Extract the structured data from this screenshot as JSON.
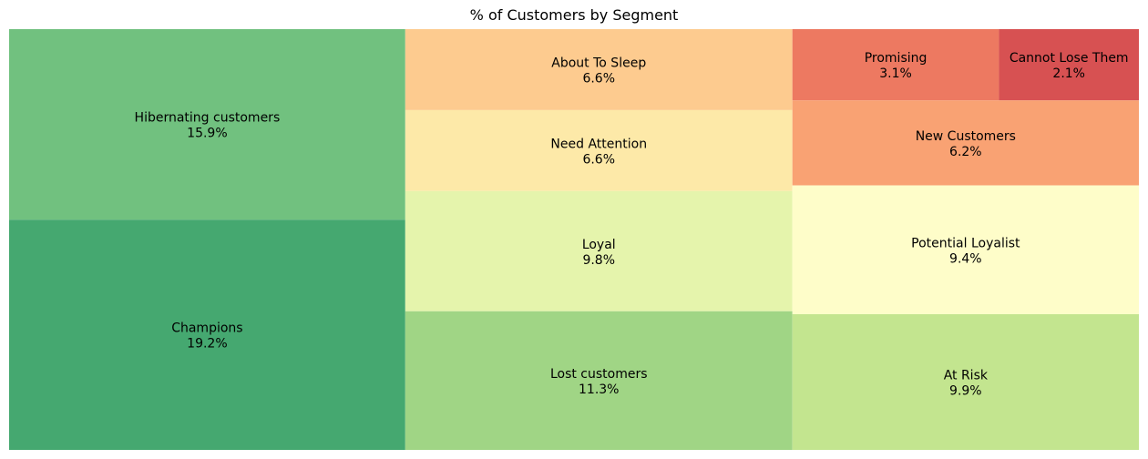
{
  "chart_data": {
    "type": "treemap",
    "title": "% of Customers by Segment",
    "value_format": "{value}%",
    "segments": [
      {
        "name": "Champions",
        "value": 19.2,
        "label": "19.2%",
        "color": "#45a870"
      },
      {
        "name": "Hibernating customers",
        "value": 15.9,
        "label": "15.9%",
        "color": "#71c17f"
      },
      {
        "name": "Lost customers",
        "value": 11.3,
        "label": "11.3%",
        "color": "#a0d585"
      },
      {
        "name": "Loyal",
        "value": 9.8,
        "label": "9.8%",
        "color": "#e5f4ac"
      },
      {
        "name": "About To Sleep",
        "value": 6.6,
        "label": "6.6%",
        "color": "#fdcb8f"
      },
      {
        "name": "Need Attention",
        "value": 6.6,
        "label": "6.6%",
        "color": "#fde9a8"
      },
      {
        "name": "At Risk",
        "value": 9.9,
        "label": "9.9%",
        "color": "#c3e58f"
      },
      {
        "name": "Potential Loyalist",
        "value": 9.4,
        "label": "9.4%",
        "color": "#fefdc9"
      },
      {
        "name": "New Customers",
        "value": 6.2,
        "label": "6.2%",
        "color": "#f9a273"
      },
      {
        "name": "Promising",
        "value": 3.1,
        "label": "3.1%",
        "color": "#ed7961"
      },
      {
        "name": "Cannot Lose Them",
        "value": 2.1,
        "label": "2.1%",
        "color": "#d75152"
      }
    ]
  }
}
